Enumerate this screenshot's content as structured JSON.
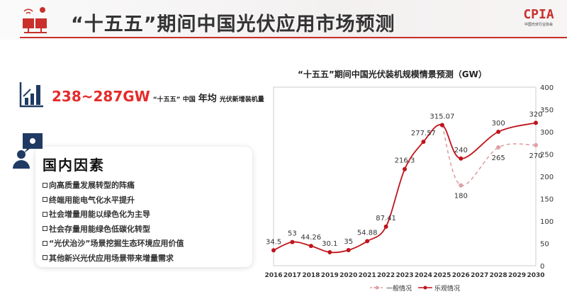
{
  "header": {
    "title": "“十五五”期间中国光伏应用市场预测",
    "logo_text": "CPIA",
    "logo_sub": "中国光伏行业协会"
  },
  "kpi": {
    "value": "238~287GW",
    "label_a": "“十五五” 中国",
    "label_b": "年均",
    "label_c": "光伏新增装机量"
  },
  "factors": {
    "title": "国内因素",
    "items": [
      "向高质量发展转型的阵痛",
      "终端用能电气化水平提升",
      "社会增量用能以绿色化为主导",
      "社会存量用能绿色低碳化转型",
      "“光伏治沙”场景挖掘生态环境应用价值",
      "其他新兴光伏应用场景带来增量需求"
    ]
  },
  "chart_data": {
    "type": "line",
    "title": "“十五五”期间中国光伏装机规模情景预测（GW）",
    "categories": [
      "2016",
      "2017",
      "2018",
      "2019",
      "2020",
      "2021",
      "2022",
      "2023",
      "2024",
      "2025",
      "2026",
      "2027",
      "2028",
      "2029",
      "2030"
    ],
    "ylim": [
      0,
      400
    ],
    "yticks": [
      0,
      50,
      100,
      150,
      200,
      250,
      300,
      350,
      400
    ],
    "y_axis_side": "right",
    "grid": false,
    "legend": "bottom",
    "series": [
      {
        "name": "一般情况",
        "style": "dashed",
        "color": "#e0a0a4",
        "values": [
          34.5,
          53,
          44.26,
          30.1,
          35,
          54.88,
          87.41,
          216.3,
          277.57,
          315.07,
          180,
          null,
          265,
          null,
          270
        ],
        "labels": [
          null,
          null,
          null,
          null,
          null,
          null,
          null,
          null,
          null,
          null,
          "180",
          null,
          "265",
          null,
          "270"
        ]
      },
      {
        "name": "乐观情况",
        "style": "solid",
        "color": "#c0141c",
        "values": [
          34.5,
          53,
          44.26,
          30.1,
          35,
          54.88,
          87.41,
          216.3,
          277.57,
          315.07,
          240,
          null,
          300,
          null,
          320
        ],
        "labels": [
          "34.5",
          "53",
          "44.26",
          "30.1",
          "35",
          "54.88",
          "87.41",
          "216.3",
          "277.57",
          "315.07",
          "240",
          null,
          "300",
          null,
          "320"
        ]
      }
    ]
  },
  "colors": {
    "accent": "#c9302c",
    "kpi": "#e62b2b",
    "icon": "#1f3a63"
  }
}
